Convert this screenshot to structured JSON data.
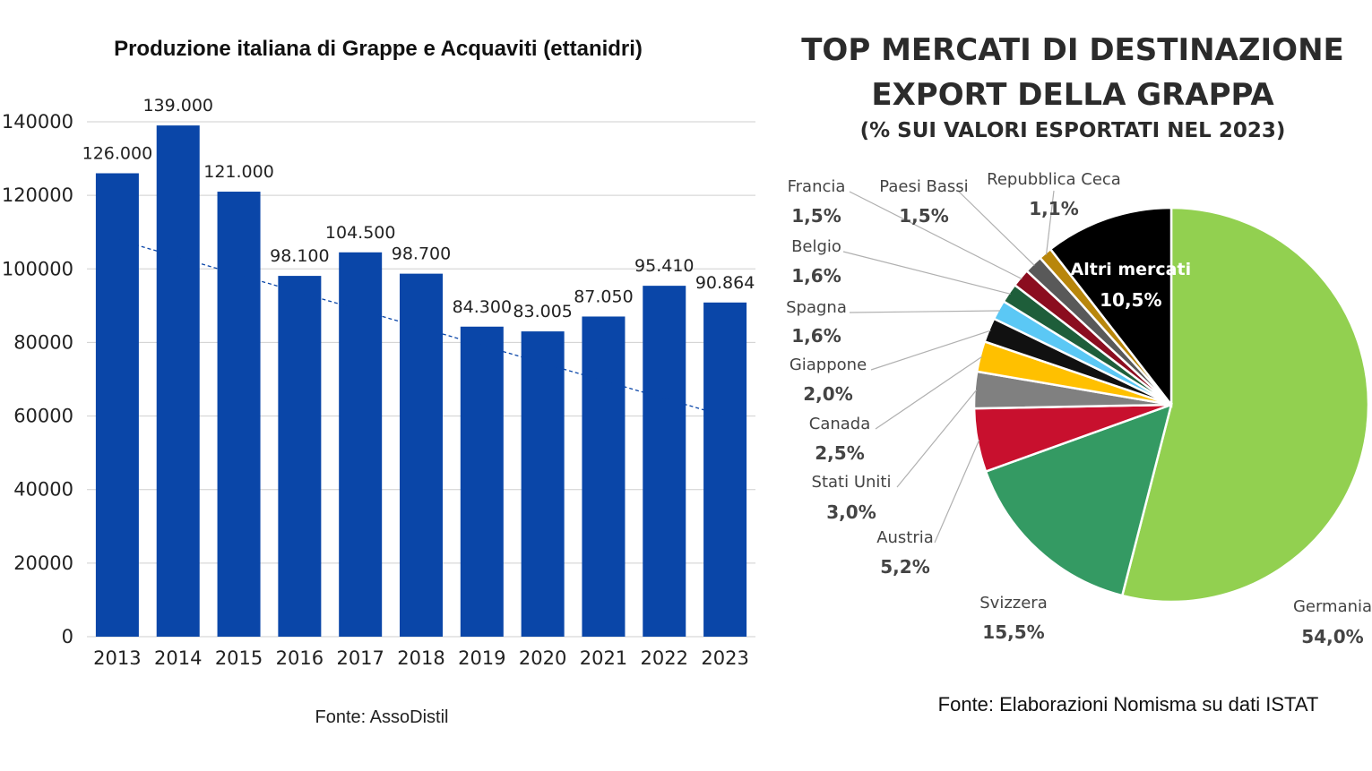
{
  "chart_data": [
    {
      "type": "bar",
      "title": "Produzione italiana di Grappe e Acquaviti (ettanidri)",
      "categories": [
        "2013",
        "2014",
        "2015",
        "2016",
        "2017",
        "2018",
        "2019",
        "2020",
        "2021",
        "2022",
        "2023"
      ],
      "values": [
        126000,
        139000,
        121000,
        98100,
        104500,
        98700,
        84300,
        83005,
        87050,
        95410,
        90864
      ],
      "value_labels": [
        "126.000",
        "139.000",
        "121.000",
        "98.100",
        "104.500",
        "98.700",
        "84.300",
        "83.005",
        "87.050",
        "95.410",
        "90.864"
      ],
      "ylim": [
        0,
        140000
      ],
      "yticks": [
        0,
        20000,
        40000,
        60000,
        80000,
        100000,
        120000,
        140000
      ],
      "ytick_labels": [
        "0",
        "20000",
        "40000",
        "60000",
        "80000",
        "100000",
        "120000",
        "140000"
      ],
      "grid": true,
      "trendline": {
        "type": "linear",
        "style": "dashed",
        "start": 108000,
        "end": 60000
      },
      "bar_color": "#0a46a8",
      "source": "Fonte: AssoDistil"
    },
    {
      "type": "pie",
      "title_lines": [
        "TOP MERCATI DI DESTINAZIONE",
        "EXPORT DELLA GRAPPA",
        "(% SUI VALORI ESPORTATI NEL 2023)"
      ],
      "slices": [
        {
          "name": "Germania",
          "value": 54.0,
          "label": "54,0%",
          "color": "#92d050"
        },
        {
          "name": "Svizzera",
          "value": 15.5,
          "label": "15,5%",
          "color": "#349a63"
        },
        {
          "name": "Austria",
          "value": 5.2,
          "label": "5,2%",
          "color": "#c8102e"
        },
        {
          "name": "Stati Uniti",
          "value": 3.0,
          "label": "3,0%",
          "color": "#808080"
        },
        {
          "name": "Canada",
          "value": 2.5,
          "label": "2,5%",
          "color": "#ffc000"
        },
        {
          "name": "Giappone",
          "value": 2.0,
          "label": "2,0%",
          "color": "#111111"
        },
        {
          "name": "Spagna",
          "value": 1.6,
          "label": "1,6%",
          "color": "#5bc8f5"
        },
        {
          "name": "Belgio",
          "value": 1.6,
          "label": "1,6%",
          "color": "#1e5e3a"
        },
        {
          "name": "Francia",
          "value": 1.5,
          "label": "1,5%",
          "color": "#8b0d1f"
        },
        {
          "name": "Paesi Bassi",
          "value": 1.5,
          "label": "1,5%",
          "color": "#595959"
        },
        {
          "name": "Repubblica Ceca",
          "value": 1.1,
          "label": "1,1%",
          "color": "#b8860b"
        },
        {
          "name": "Altri mercati",
          "value": 10.5,
          "label": "10,5%",
          "color": "#000000"
        }
      ],
      "source": "Fonte: Elaborazioni Nomisma su dati ISTAT"
    }
  ]
}
